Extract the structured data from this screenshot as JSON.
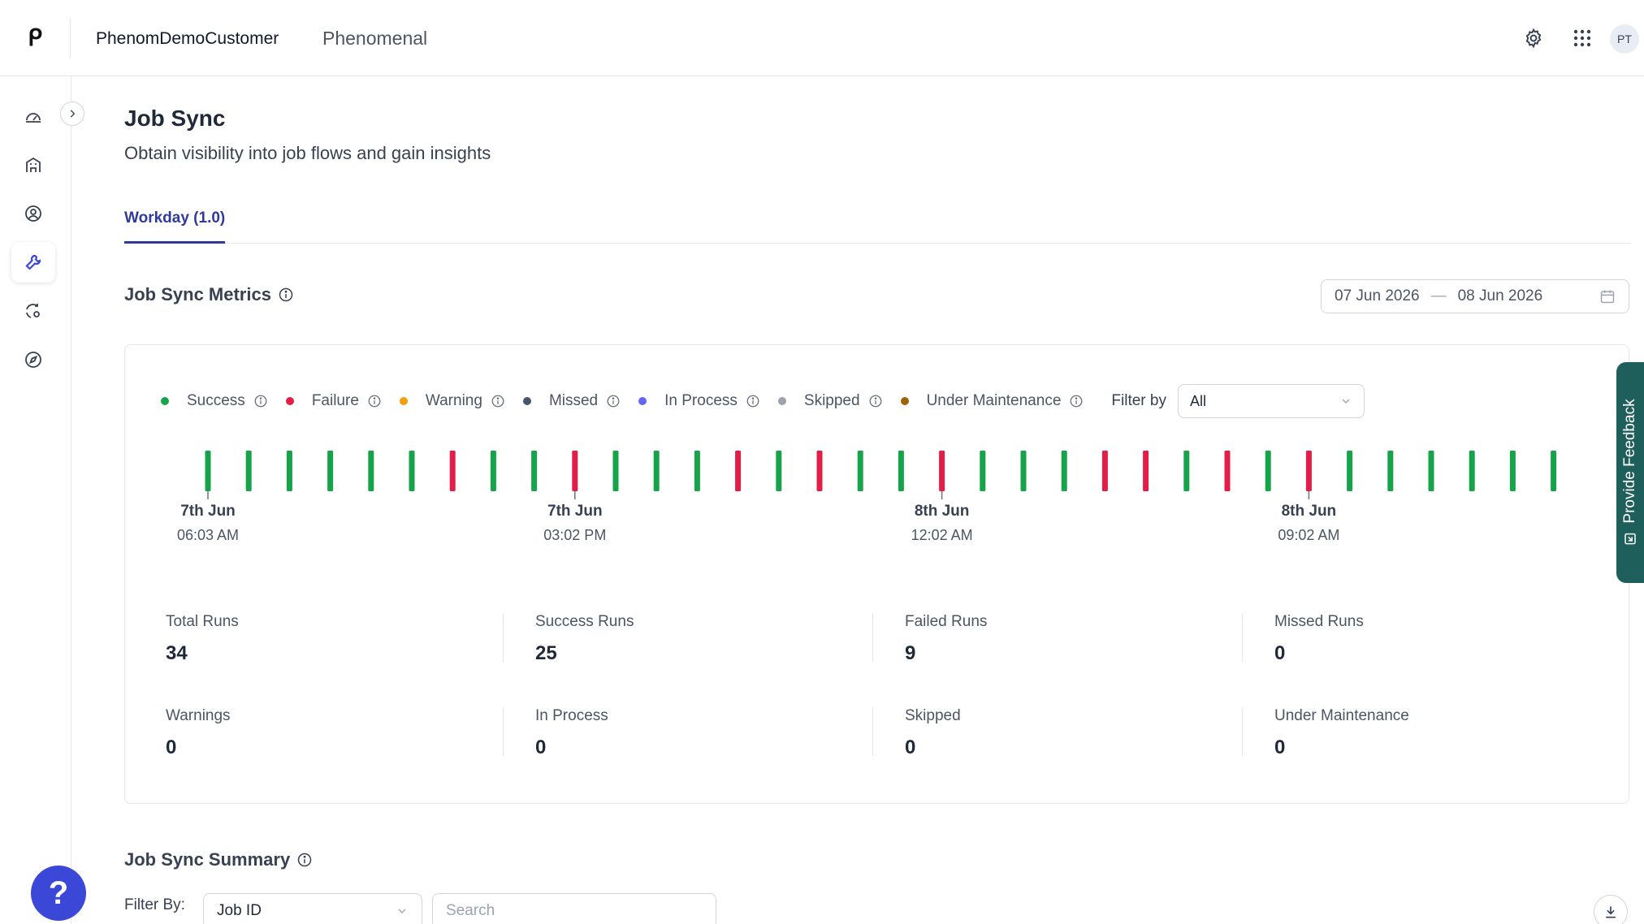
{
  "header": {
    "org_name": "PhenomDemoCustomer",
    "app_name": "Phenomenal",
    "avatar_initials": "PT",
    "icons": [
      "gear-icon",
      "apps-grid-icon"
    ]
  },
  "sidebar": {
    "items": [
      {
        "icon": "dashboard-icon"
      },
      {
        "icon": "building-icon"
      },
      {
        "icon": "user-circle-icon"
      },
      {
        "icon": "tools-icon",
        "active": true
      },
      {
        "icon": "sync-settings-icon"
      },
      {
        "icon": "compass-icon"
      }
    ],
    "help_label": "?"
  },
  "page": {
    "title": "Job Sync",
    "subtitle": "Obtain visibility into job flows and gain insights"
  },
  "tabs": [
    {
      "label": "Workday (1.0)",
      "active": true
    }
  ],
  "metrics": {
    "title": "Job Sync Metrics",
    "date_start": "07 Jun 2026",
    "date_end": "08 Jun 2026",
    "filter_label": "Filter by",
    "filter_value": "All",
    "legend": [
      {
        "label": "Success",
        "color": "#16a34a"
      },
      {
        "label": "Failure",
        "color": "#e11d48"
      },
      {
        "label": "Warning",
        "color": "#f59e0b"
      },
      {
        "label": "Missed",
        "color": "#475569"
      },
      {
        "label": "In Process",
        "color": "#6366f1"
      },
      {
        "label": "Skipped",
        "color": "#9ca3af"
      },
      {
        "label": "Under Maintenance",
        "color": "#a16207"
      }
    ],
    "timeline": {
      "runs": [
        "success",
        "success",
        "success",
        "success",
        "success",
        "success",
        "failure",
        "success",
        "success",
        "failure",
        "success",
        "success",
        "success",
        "failure",
        "success",
        "failure",
        "success",
        "success",
        "failure",
        "success",
        "success",
        "success",
        "failure",
        "failure",
        "success",
        "failure",
        "success",
        "failure",
        "success",
        "success",
        "success",
        "success",
        "success",
        "success"
      ],
      "ticks": [
        {
          "date": "7th Jun",
          "time": "06:03 AM"
        },
        {
          "date": "7th Jun",
          "time": "03:02 PM"
        },
        {
          "date": "8th Jun",
          "time": "12:02 AM"
        },
        {
          "date": "8th Jun",
          "time": "09:02 AM"
        }
      ]
    },
    "stats": [
      {
        "label": "Total Runs",
        "value": "34"
      },
      {
        "label": "Success Runs",
        "value": "25"
      },
      {
        "label": "Failed Runs",
        "value": "9"
      },
      {
        "label": "Missed Runs",
        "value": "0"
      },
      {
        "label": "Warnings",
        "value": "0"
      },
      {
        "label": "In Process",
        "value": "0"
      },
      {
        "label": "Skipped",
        "value": "0"
      },
      {
        "label": "Under Maintenance",
        "value": "0"
      }
    ]
  },
  "feedback": {
    "label": "Provide Feedback"
  },
  "summary": {
    "title": "Job Sync Summary",
    "filter_label": "Filter By:",
    "filter_value": "Job ID",
    "search_placeholder": "Search"
  }
}
